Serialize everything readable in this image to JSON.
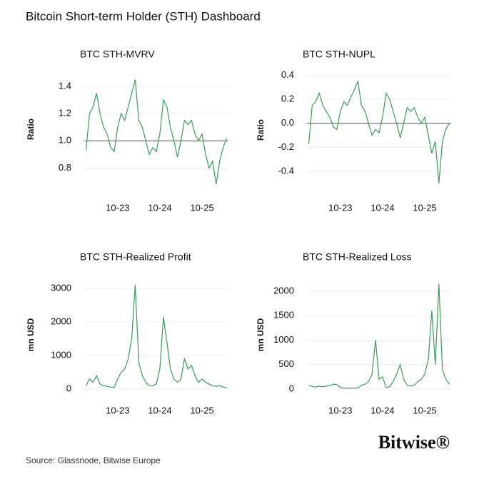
{
  "header": {
    "title": "Bitcoin Short-term Holder (STH) Dashboard"
  },
  "footer": {
    "source": "Source: Glassnode, Bitwise Europe",
    "brand": "Bitwise®"
  },
  "chart_data": [
    {
      "type": "line",
      "title": "BTC STH-MVRV",
      "y_label": "Ratio",
      "color": "#3d9a5c",
      "grid": true,
      "ref_line": 1,
      "categories": [
        "01-23",
        "02-23",
        "03-23",
        "04-23",
        "05-23",
        "06-23",
        "07-23",
        "08-23",
        "09-23",
        "10-23",
        "11-23",
        "12-23",
        "01-24",
        "02-24",
        "03-24",
        "04-24",
        "05-24",
        "06-24",
        "07-24",
        "08-24",
        "09-24",
        "10-24",
        "11-24",
        "12-24",
        "01-25",
        "02-25",
        "03-25",
        "04-25",
        "05-25",
        "06-25",
        "07-25",
        "08-25",
        "09-25",
        "10-25",
        "11-25",
        "12-25",
        "01-26",
        "02-26",
        "03-26",
        "04-26",
        "05-26"
      ],
      "xticks": [
        "10-23",
        "10-24",
        "10-25"
      ],
      "values": [
        0.93,
        1.2,
        1.25,
        1.35,
        1.2,
        1.1,
        1.05,
        0.95,
        0.92,
        1.1,
        1.2,
        1.15,
        1.25,
        1.35,
        1.45,
        1.15,
        1.1,
        1.0,
        0.9,
        0.95,
        0.92,
        1.05,
        1.3,
        1.25,
        1.1,
        1.0,
        0.88,
        1.0,
        1.15,
        1.12,
        1.15,
        1.05,
        1.0,
        1.05,
        0.9,
        0.8,
        0.85,
        0.68,
        0.85,
        0.95,
        1.02
      ],
      "ylim": [
        0.66,
        1.51
      ],
      "yticks": [
        0.8,
        {
          "value": 1,
          "label": "1.0"
        },
        1.2,
        1.4
      ]
    },
    {
      "type": "line",
      "title": "BTC STH-NUPL",
      "y_label": "Ratio",
      "color": "#3d9a5c",
      "grid": true,
      "ref_line": 0,
      "categories": [
        "01-23",
        "02-23",
        "03-23",
        "04-23",
        "05-23",
        "06-23",
        "07-23",
        "08-23",
        "09-23",
        "10-23",
        "11-23",
        "12-23",
        "01-24",
        "02-24",
        "03-24",
        "04-24",
        "05-24",
        "06-24",
        "07-24",
        "08-24",
        "09-24",
        "10-24",
        "11-24",
        "12-24",
        "01-25",
        "02-25",
        "03-25",
        "04-25",
        "05-25",
        "06-25",
        "07-25",
        "08-25",
        "09-25",
        "10-25",
        "11-25",
        "12-25",
        "01-26",
        "02-26",
        "03-26",
        "04-26",
        "05-26"
      ],
      "xticks": [
        "10-23",
        "10-24",
        "10-25"
      ],
      "values": [
        -0.17,
        0.15,
        0.18,
        0.25,
        0.15,
        0.1,
        0.05,
        -0.03,
        -0.05,
        0.1,
        0.18,
        0.15,
        0.22,
        0.28,
        0.35,
        0.15,
        0.1,
        0.0,
        -0.1,
        -0.05,
        -0.08,
        0.05,
        0.25,
        0.2,
        0.1,
        0.0,
        -0.12,
        0.0,
        0.13,
        0.1,
        0.13,
        0.05,
        0.0,
        0.05,
        -0.1,
        -0.25,
        -0.15,
        -0.5,
        -0.15,
        -0.05,
        0.0
      ],
      "ylim": [
        -0.53,
        0.42
      ],
      "yticks": [
        -0.4,
        -0.2,
        {
          "value": 0,
          "label": "0.0"
        },
        0.2,
        0.4
      ]
    },
    {
      "type": "line",
      "title": "BTC STH-Realized Profit",
      "y_label": "mn USD",
      "color": "#3d9a5c",
      "grid": true,
      "categories": [
        "01-23",
        "02-23",
        "03-23",
        "04-23",
        "05-23",
        "06-23",
        "07-23",
        "08-23",
        "09-23",
        "10-23",
        "11-23",
        "12-23",
        "01-24",
        "02-24",
        "03-24",
        "04-24",
        "05-24",
        "06-24",
        "07-24",
        "08-24",
        "09-24",
        "10-24",
        "11-24",
        "12-24",
        "01-25",
        "02-25",
        "03-25",
        "04-25",
        "05-25",
        "06-25",
        "07-25",
        "08-25",
        "09-25",
        "10-25",
        "11-25",
        "12-25",
        "01-26",
        "02-26",
        "03-26",
        "04-26",
        "05-26"
      ],
      "xticks": [
        "10-23",
        "10-24",
        "10-25"
      ],
      "values": [
        100,
        300,
        200,
        400,
        150,
        100,
        80,
        60,
        50,
        300,
        500,
        600,
        900,
        1500,
        3100,
        800,
        400,
        200,
        100,
        100,
        150,
        600,
        2150,
        1400,
        600,
        300,
        200,
        300,
        900,
        600,
        700,
        400,
        200,
        300,
        200,
        150,
        100,
        80,
        100,
        60,
        40
      ],
      "ylim": [
        -64,
        3300
      ],
      "yticks": [
        0,
        1000,
        2000,
        3000
      ]
    },
    {
      "type": "line",
      "title": "BTC STH-Realized Loss",
      "y_label": "mn USD",
      "color": "#3d9a5c",
      "grid": true,
      "categories": [
        "01-23",
        "02-23",
        "03-23",
        "04-23",
        "05-23",
        "06-23",
        "07-23",
        "08-23",
        "09-23",
        "10-23",
        "11-23",
        "12-23",
        "01-24",
        "02-24",
        "03-24",
        "04-24",
        "05-24",
        "06-24",
        "07-24",
        "08-24",
        "09-24",
        "10-24",
        "11-24",
        "12-24",
        "01-25",
        "02-25",
        "03-25",
        "04-25",
        "05-25",
        "06-25",
        "07-25",
        "08-25",
        "09-25",
        "10-25",
        "11-25",
        "12-25",
        "01-26",
        "02-26",
        "03-26",
        "04-26",
        "05-26"
      ],
      "xticks": [
        "10-23",
        "10-24",
        "10-25"
      ],
      "values": [
        80,
        50,
        40,
        60,
        50,
        60,
        70,
        100,
        90,
        30,
        20,
        20,
        20,
        20,
        20,
        80,
        100,
        150,
        300,
        1000,
        200,
        250,
        30,
        50,
        150,
        300,
        500,
        200,
        80,
        60,
        80,
        150,
        200,
        300,
        600,
        1600,
        500,
        2150,
        400,
        200,
        100
      ],
      "ylim": [
        -44,
        2260
      ],
      "yticks": [
        0,
        500,
        1000,
        1500,
        2000
      ]
    }
  ]
}
